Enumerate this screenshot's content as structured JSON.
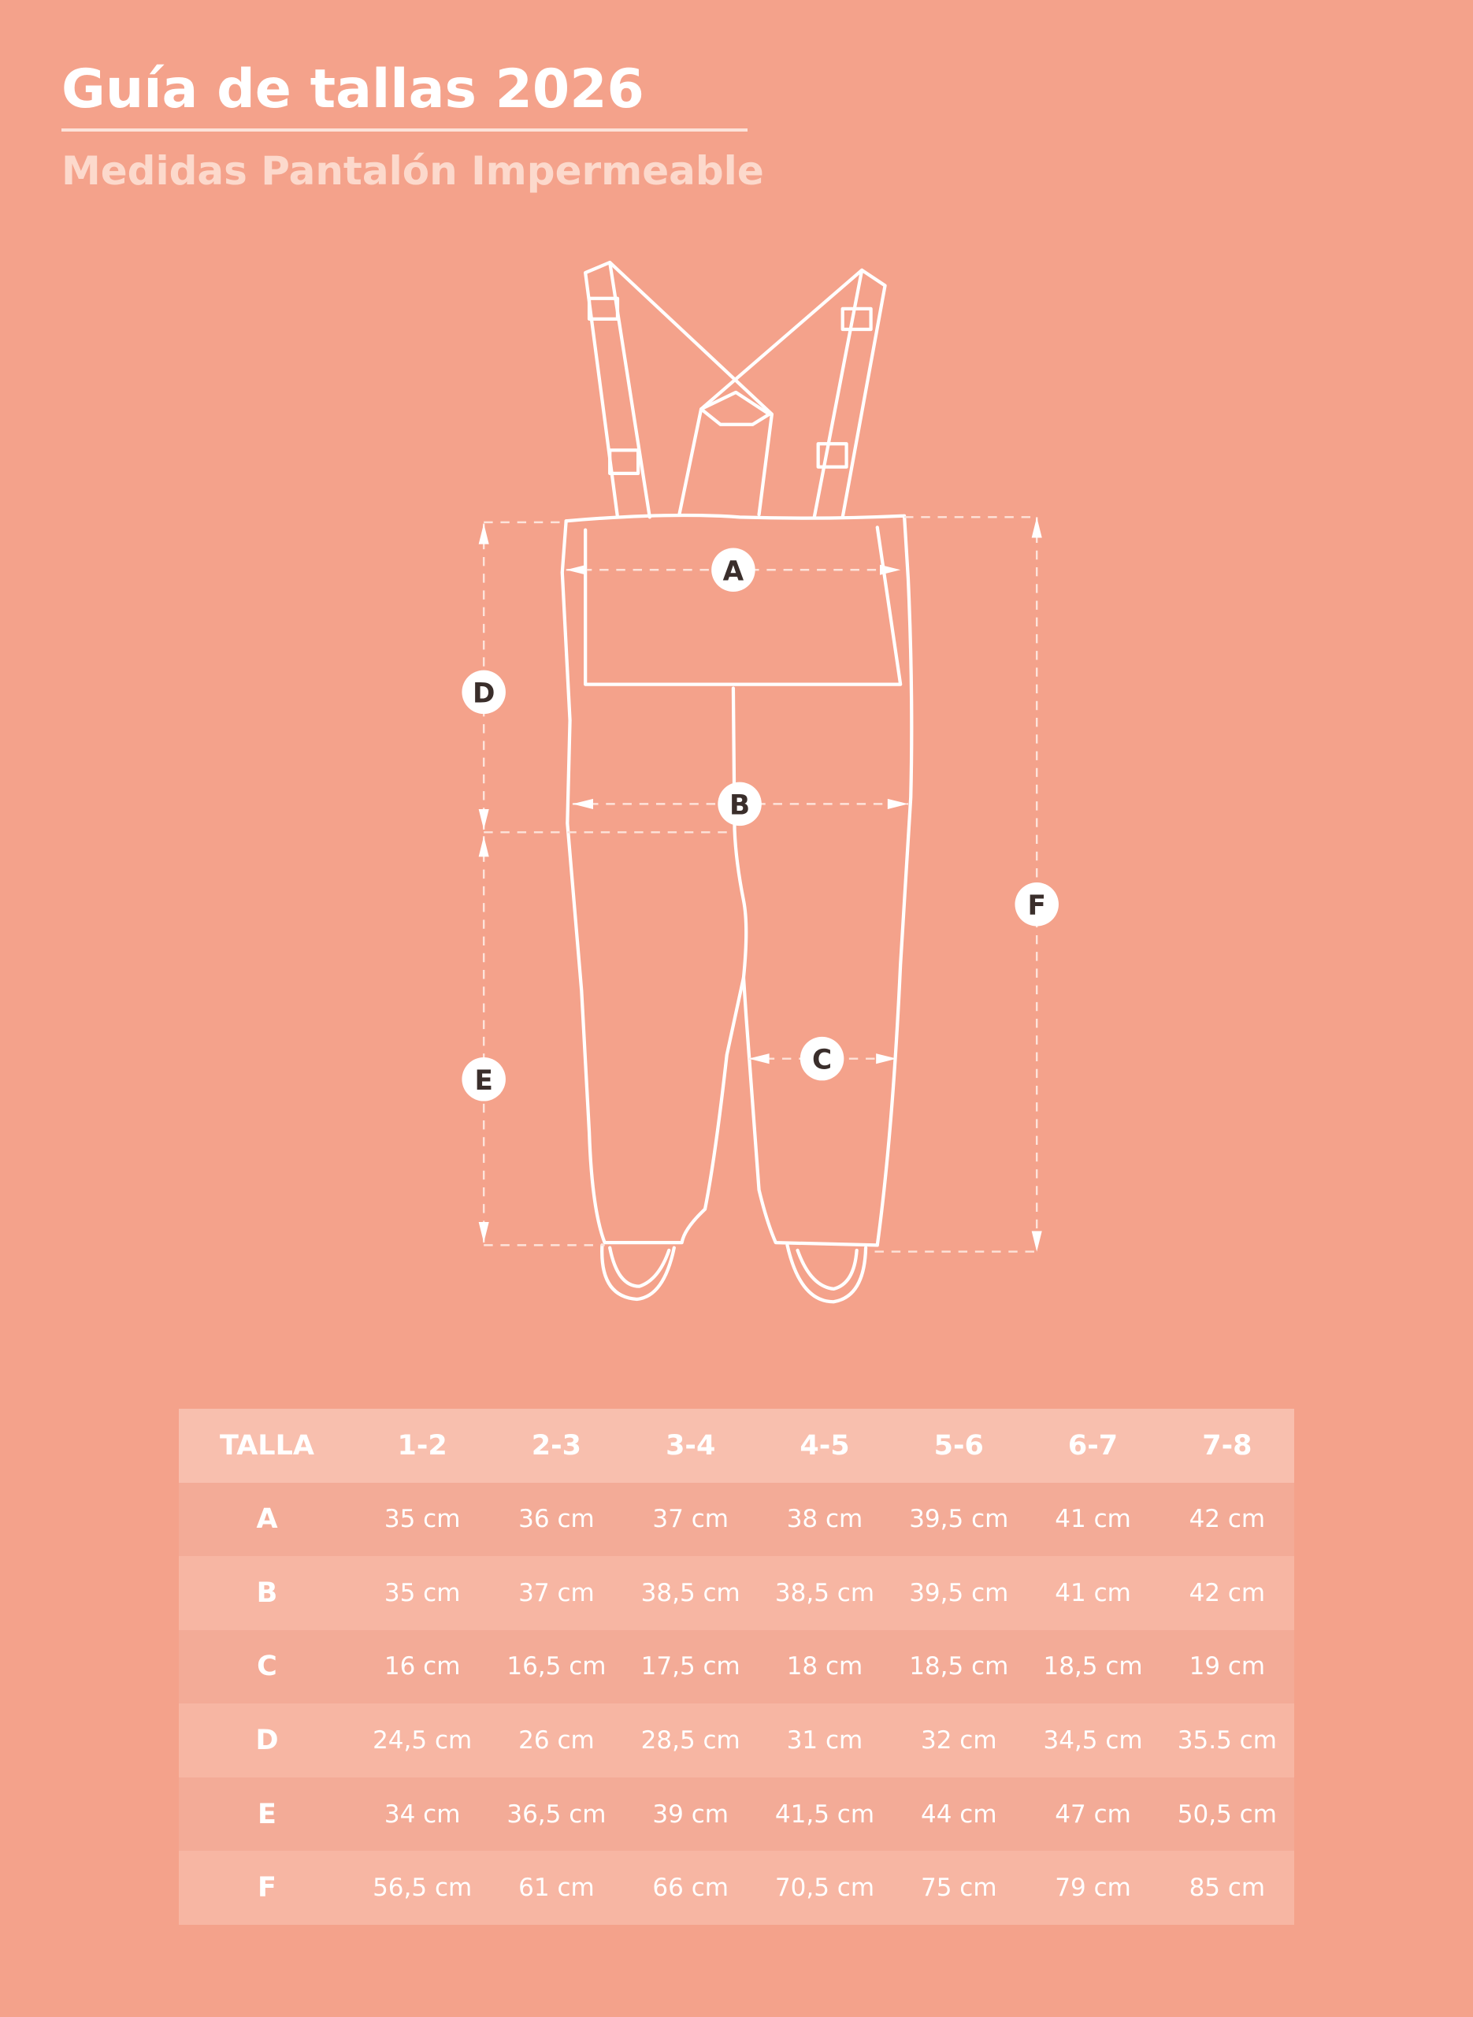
{
  "header": {
    "title": "Guía de tallas 2026",
    "subtitle": "Medidas Pantalón Impermeable"
  },
  "colors": {
    "background": "#f4a28b",
    "table_header": "#f8bfae",
    "row_dark": "#f3ab97",
    "row_light": "#f7b6a3",
    "subtitle": "#fcd9cc",
    "label_text": "#3a2e2b"
  },
  "diagram": {
    "labels": {
      "A": "A",
      "B": "B",
      "C": "C",
      "D": "D",
      "E": "E",
      "F": "F"
    }
  },
  "table": {
    "headers": [
      "TALLA",
      "1-2",
      "2-3",
      "3-4",
      "4-5",
      "5-6",
      "6-7",
      "7-8"
    ],
    "rows": [
      {
        "label": "A",
        "values": [
          "35  cm",
          "36  cm",
          "37 cm",
          "38 cm",
          "39,5 cm",
          "41 cm",
          "42  cm"
        ]
      },
      {
        "label": "B",
        "values": [
          "35  cm",
          "37 cm",
          "38,5 cm",
          "38,5 cm",
          "39,5 cm",
          "41 cm",
          "42  cm"
        ]
      },
      {
        "label": "C",
        "values": [
          "16  cm",
          "16,5  cm",
          "17,5  cm",
          "18 cm",
          "18,5 cm",
          "18,5 cm",
          "19   cm"
        ]
      },
      {
        "label": "D",
        "values": [
          "24,5 cm",
          "26  cm",
          "28,5 cm",
          "31  cm",
          "32  cm",
          "34,5 cm",
          "35.5 cm"
        ]
      },
      {
        "label": "E",
        "values": [
          "34  cm",
          "36,5  cm",
          "39 cm",
          "41,5 cm",
          "44  cm",
          "47  cm",
          "50,5 cm"
        ]
      },
      {
        "label": "F",
        "values": [
          "56,5  cm",
          "61  cm",
          "66  cm",
          "70,5 cm",
          "75 cm",
          "79  cm",
          "85  cm"
        ]
      }
    ]
  }
}
